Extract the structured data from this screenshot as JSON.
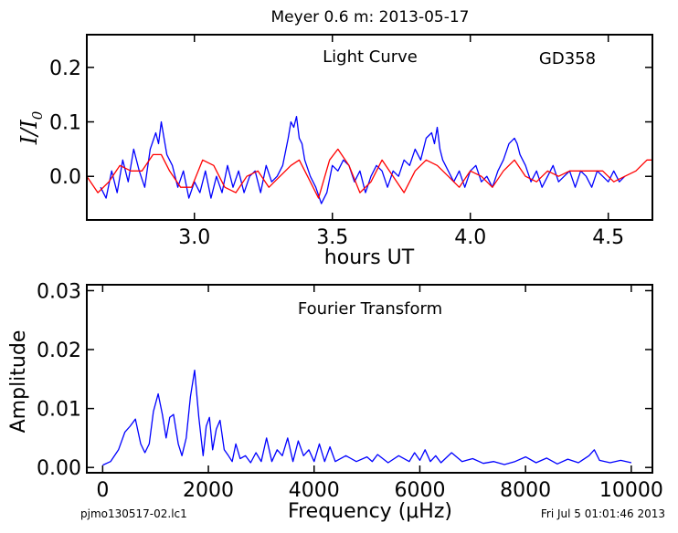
{
  "figure": {
    "title": "Meyer 0.6 m:  2013-05-17",
    "footer_left": "pjmo130517-02.lc1",
    "footer_right": "Fri Jul  5 01:01:46 2013"
  },
  "chart_data": [
    {
      "type": "line",
      "panel": "light-curve",
      "annotation": "Light Curve",
      "star_label": "GD358",
      "xlabel": "hours UT",
      "ylabel_main": "I/I",
      "ylabel_sub": "0",
      "xlim": [
        2.61,
        4.66
      ],
      "ylim": [
        -0.08,
        0.26
      ],
      "xticks": [
        {
          "v": 3.0,
          "label": "3.0"
        },
        {
          "v": 3.5,
          "label": "3.5"
        },
        {
          "v": 4.0,
          "label": "4.0"
        },
        {
          "v": 4.5,
          "label": "4.5"
        }
      ],
      "yticks": [
        {
          "v": 0.0,
          "label": "0.0"
        },
        {
          "v": 0.1,
          "label": "0.1"
        },
        {
          "v": 0.2,
          "label": "0.2"
        }
      ],
      "grid": false,
      "series": [
        {
          "color": "#0000ff",
          "x": [
            2.66,
            2.68,
            2.7,
            2.72,
            2.74,
            2.76,
            2.78,
            2.8,
            2.82,
            2.84,
            2.86,
            2.87,
            2.88,
            2.89,
            2.9,
            2.92,
            2.94,
            2.96,
            2.98,
            3.0,
            3.02,
            3.04,
            3.06,
            3.08,
            3.1,
            3.12,
            3.14,
            3.16,
            3.18,
            3.2,
            3.22,
            3.24,
            3.26,
            3.28,
            3.3,
            3.32,
            3.34,
            3.35,
            3.36,
            3.37,
            3.38,
            3.39,
            3.4,
            3.42,
            3.44,
            3.46,
            3.48,
            3.5,
            3.52,
            3.54,
            3.56,
            3.58,
            3.6,
            3.62,
            3.64,
            3.66,
            3.68,
            3.7,
            3.72,
            3.74,
            3.76,
            3.78,
            3.8,
            3.82,
            3.84,
            3.86,
            3.87,
            3.88,
            3.89,
            3.9,
            3.92,
            3.94,
            3.96,
            3.98,
            4.0,
            4.02,
            4.04,
            4.06,
            4.08,
            4.1,
            4.12,
            4.14,
            4.16,
            4.17,
            4.18,
            4.2,
            4.22,
            4.24,
            4.26,
            4.28,
            4.3,
            4.32,
            4.34,
            4.36,
            4.38,
            4.4,
            4.42,
            4.44,
            4.46,
            4.48,
            4.5,
            4.52,
            4.54,
            4.56
          ],
          "y": [
            -0.02,
            -0.04,
            0.01,
            -0.03,
            0.03,
            -0.01,
            0.05,
            0.01,
            -0.02,
            0.05,
            0.08,
            0.06,
            0.1,
            0.07,
            0.04,
            0.02,
            -0.02,
            0.01,
            -0.04,
            -0.01,
            -0.03,
            0.01,
            -0.04,
            0.0,
            -0.03,
            0.02,
            -0.02,
            0.01,
            -0.03,
            0.0,
            0.01,
            -0.03,
            0.02,
            -0.01,
            0.0,
            0.02,
            0.07,
            0.1,
            0.09,
            0.11,
            0.07,
            0.06,
            0.03,
            0.0,
            -0.02,
            -0.05,
            -0.03,
            0.02,
            0.01,
            0.03,
            0.02,
            -0.01,
            0.01,
            -0.03,
            0.0,
            0.02,
            0.01,
            -0.02,
            0.01,
            0.0,
            0.03,
            0.02,
            0.05,
            0.03,
            0.07,
            0.08,
            0.06,
            0.09,
            0.05,
            0.03,
            0.01,
            -0.01,
            0.01,
            -0.02,
            0.01,
            0.02,
            -0.01,
            0.0,
            -0.02,
            0.01,
            0.03,
            0.06,
            0.07,
            0.06,
            0.04,
            0.02,
            -0.01,
            0.01,
            -0.02,
            0.0,
            0.02,
            -0.01,
            0.0,
            0.01,
            -0.02,
            0.01,
            0.0,
            -0.02,
            0.01,
            0.0,
            -0.01,
            0.01,
            -0.01,
            0.0
          ]
        },
        {
          "color": "#ff0000",
          "x": [
            2.61,
            2.65,
            2.69,
            2.73,
            2.77,
            2.81,
            2.85,
            2.88,
            2.91,
            2.95,
            2.99,
            3.03,
            3.07,
            3.11,
            3.15,
            3.19,
            3.23,
            3.27,
            3.31,
            3.35,
            3.38,
            3.41,
            3.45,
            3.49,
            3.52,
            3.56,
            3.6,
            3.64,
            3.68,
            3.72,
            3.76,
            3.8,
            3.84,
            3.88,
            3.92,
            3.96,
            4.0,
            4.04,
            4.08,
            4.12,
            4.16,
            4.2,
            4.24,
            4.28,
            4.32,
            4.36,
            4.4,
            4.44,
            4.48,
            4.52,
            4.56,
            4.6,
            4.64,
            4.66
          ],
          "y": [
            0.0,
            -0.03,
            -0.01,
            0.02,
            0.01,
            0.01,
            0.04,
            0.04,
            0.01,
            -0.02,
            -0.02,
            0.03,
            0.02,
            -0.02,
            -0.03,
            0.0,
            0.01,
            -0.02,
            0.0,
            0.02,
            0.03,
            0.0,
            -0.04,
            0.03,
            0.05,
            0.02,
            -0.03,
            -0.01,
            0.03,
            0.0,
            -0.03,
            0.01,
            0.03,
            0.02,
            0.0,
            -0.02,
            0.01,
            0.0,
            -0.02,
            0.01,
            0.03,
            0.0,
            -0.01,
            0.01,
            0.0,
            0.01,
            0.01,
            0.01,
            0.01,
            -0.01,
            0.0,
            0.01,
            0.03,
            0.03
          ]
        }
      ]
    },
    {
      "type": "line",
      "panel": "fourier-transform",
      "annotation": "Fourier Transform",
      "xlabel": "Frequency (μHz)",
      "ylabel": "Amplitude",
      "xlim": [
        -300,
        10400
      ],
      "ylim": [
        -0.0009,
        0.031
      ],
      "xticks": [
        {
          "v": 0,
          "label": "0"
        },
        {
          "v": 2000,
          "label": "2000"
        },
        {
          "v": 4000,
          "label": "4000"
        },
        {
          "v": 6000,
          "label": "6000"
        },
        {
          "v": 8000,
          "label": "8000"
        },
        {
          "v": 10000,
          "label": "10000"
        }
      ],
      "yticks": [
        {
          "v": 0.0,
          "label": "0.00"
        },
        {
          "v": 0.01,
          "label": "0.01"
        },
        {
          "v": 0.02,
          "label": "0.02"
        },
        {
          "v": 0.03,
          "label": "0.03"
        }
      ],
      "grid": false,
      "series": [
        {
          "color": "#0000ff",
          "x": [
            0,
            150,
            300,
            420,
            520,
            620,
            720,
            800,
            880,
            960,
            1050,
            1130,
            1200,
            1270,
            1340,
            1430,
            1500,
            1580,
            1660,
            1740,
            1820,
            1900,
            1960,
            2020,
            2080,
            2150,
            2220,
            2300,
            2380,
            2450,
            2520,
            2600,
            2700,
            2800,
            2900,
            3000,
            3100,
            3200,
            3300,
            3400,
            3500,
            3600,
            3700,
            3800,
            3900,
            4000,
            4100,
            4200,
            4300,
            4400,
            4600,
            4800,
            5000,
            5100,
            5200,
            5400,
            5600,
            5800,
            5900,
            6000,
            6100,
            6200,
            6300,
            6400,
            6600,
            6800,
            7000,
            7200,
            7400,
            7600,
            7800,
            8000,
            8200,
            8400,
            8600,
            8800,
            9000,
            9200,
            9300,
            9400,
            9600,
            9800,
            10000
          ],
          "y": [
            0.0004,
            0.001,
            0.003,
            0.006,
            0.007,
            0.0082,
            0.004,
            0.0025,
            0.004,
            0.0095,
            0.0125,
            0.009,
            0.005,
            0.0085,
            0.009,
            0.004,
            0.002,
            0.005,
            0.012,
            0.0165,
            0.0085,
            0.002,
            0.007,
            0.0085,
            0.003,
            0.0065,
            0.008,
            0.003,
            0.002,
            0.001,
            0.004,
            0.0015,
            0.002,
            0.0008,
            0.0025,
            0.001,
            0.005,
            0.001,
            0.003,
            0.002,
            0.005,
            0.001,
            0.0045,
            0.002,
            0.003,
            0.001,
            0.004,
            0.001,
            0.0035,
            0.001,
            0.002,
            0.001,
            0.0018,
            0.001,
            0.0022,
            0.0008,
            0.002,
            0.001,
            0.0025,
            0.0012,
            0.003,
            0.001,
            0.002,
            0.0008,
            0.0025,
            0.001,
            0.0015,
            0.0007,
            0.001,
            0.0005,
            0.001,
            0.0018,
            0.0008,
            0.0016,
            0.0006,
            0.0014,
            0.0008,
            0.002,
            0.003,
            0.0012,
            0.0008,
            0.0012,
            0.0008
          ]
        }
      ]
    }
  ]
}
